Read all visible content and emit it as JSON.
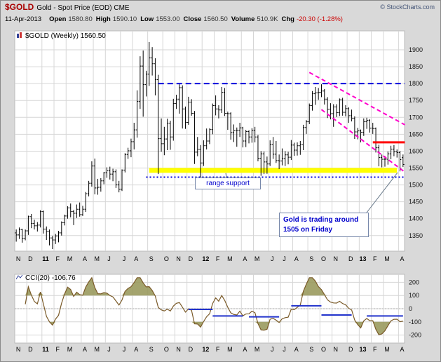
{
  "header": {
    "symbol": "$GOLD",
    "title": "Gold - Spot Price (EOD) CME",
    "copyright": "© StockCharts.com",
    "date": "11-Apr-2013",
    "quote": [
      {
        "label": "Open",
        "value": "1580.80"
      },
      {
        "label": "High",
        "value": "1590.10"
      },
      {
        "label": "Low",
        "value": "1553.00"
      },
      {
        "label": "Close",
        "value": "1560.50"
      },
      {
        "label": "Volume",
        "value": "510.9K"
      },
      {
        "label": "Chg",
        "value": "-20.30 (-1.28%)"
      }
    ]
  },
  "chart_data": {
    "type": "ohlc-bar",
    "symbol": "$GOLD",
    "timeframe": "Weekly",
    "legend": "$GOLD (Weekly) 1560.50",
    "last_close": 1560.5,
    "y_ticks": [
      1900,
      1850,
      1800,
      1750,
      1700,
      1650,
      1600,
      1550,
      1500,
      1450,
      1400,
      1350
    ],
    "y_domain": [
      1308,
      1952
    ],
    "x_months": [
      {
        "label": "N",
        "weeks": 4
      },
      {
        "label": "D",
        "weeks": 5
      },
      {
        "label": "11",
        "weeks": 4,
        "bold": true
      },
      {
        "label": "F",
        "weeks": 4
      },
      {
        "label": "M",
        "weeks": 5
      },
      {
        "label": "A",
        "weeks": 4
      },
      {
        "label": "M",
        "weeks": 4
      },
      {
        "label": "J",
        "weeks": 5
      },
      {
        "label": "J",
        "weeks": 4
      },
      {
        "label": "A",
        "weeks": 5
      },
      {
        "label": "S",
        "weeks": 5
      },
      {
        "label": "O",
        "weeks": 4
      },
      {
        "label": "N",
        "weeks": 4
      },
      {
        "label": "D",
        "weeks": 5
      },
      {
        "label": "12",
        "weeks": 4,
        "bold": true
      },
      {
        "label": "F",
        "weeks": 4
      },
      {
        "label": "M",
        "weeks": 5
      },
      {
        "label": "A",
        "weeks": 4
      },
      {
        "label": "M",
        "weeks": 5
      },
      {
        "label": "J",
        "weeks": 4
      },
      {
        "label": "J",
        "weeks": 4
      },
      {
        "label": "A",
        "weeks": 5
      },
      {
        "label": "S",
        "weeks": 4
      },
      {
        "label": "O",
        "weeks": 4
      },
      {
        "label": "N",
        "weeks": 5
      },
      {
        "label": "D",
        "weeks": 4
      },
      {
        "label": "13",
        "weeks": 4,
        "bold": true
      },
      {
        "label": "F",
        "weeks": 4
      },
      {
        "label": "M",
        "weeks": 5
      },
      {
        "label": "A",
        "weeks": 2
      }
    ],
    "bar_color": "#000000",
    "bars": [
      [
        1358,
        1368,
        1332,
        1352
      ],
      [
        1352,
        1374,
        1340,
        1368
      ],
      [
        1368,
        1370,
        1329,
        1342
      ],
      [
        1342,
        1368,
        1336,
        1364
      ],
      [
        1364,
        1409,
        1352,
        1406
      ],
      [
        1406,
        1414,
        1372,
        1386
      ],
      [
        1386,
        1397,
        1368,
        1379
      ],
      [
        1379,
        1390,
        1362,
        1381
      ],
      [
        1381,
        1425,
        1374,
        1421
      ],
      [
        1421,
        1424,
        1356,
        1369
      ],
      [
        1369,
        1377,
        1337,
        1361
      ],
      [
        1361,
        1368,
        1321,
        1343
      ],
      [
        1343,
        1349,
        1310,
        1337
      ],
      [
        1337,
        1355,
        1325,
        1349
      ],
      [
        1349,
        1364,
        1330,
        1358
      ],
      [
        1358,
        1392,
        1350,
        1388
      ],
      [
        1388,
        1412,
        1380,
        1408
      ],
      [
        1408,
        1437,
        1400,
        1432
      ],
      [
        1432,
        1445,
        1404,
        1421
      ],
      [
        1421,
        1426,
        1381,
        1416
      ],
      [
        1416,
        1442,
        1402,
        1428
      ],
      [
        1428,
        1448,
        1406,
        1412
      ],
      [
        1412,
        1438,
        1408,
        1428
      ],
      [
        1428,
        1479,
        1420,
        1474
      ],
      [
        1474,
        1512,
        1466,
        1505
      ],
      [
        1505,
        1570,
        1495,
        1556
      ],
      [
        1556,
        1578,
        1472,
        1491
      ],
      [
        1491,
        1518,
        1471,
        1493
      ],
      [
        1493,
        1520,
        1480,
        1512
      ],
      [
        1512,
        1538,
        1502,
        1536
      ],
      [
        1536,
        1552,
        1521,
        1542
      ],
      [
        1542,
        1554,
        1516,
        1532
      ],
      [
        1532,
        1548,
        1511,
        1539
      ],
      [
        1539,
        1546,
        1491,
        1500
      ],
      [
        1500,
        1512,
        1478,
        1487
      ],
      [
        1487,
        1546,
        1482,
        1544
      ],
      [
        1544,
        1594,
        1537,
        1590
      ],
      [
        1590,
        1610,
        1577,
        1601
      ],
      [
        1601,
        1637,
        1582,
        1628
      ],
      [
        1628,
        1684,
        1605,
        1663
      ],
      [
        1663,
        1780,
        1640,
        1747
      ],
      [
        1747,
        1881,
        1725,
        1852
      ],
      [
        1852,
        1898,
        1702,
        1797
      ],
      [
        1797,
        1838,
        1762,
        1828
      ],
      [
        1828,
        1923,
        1793,
        1876
      ],
      [
        1876,
        1908,
        1824,
        1859
      ],
      [
        1859,
        1875,
        1765,
        1812
      ],
      [
        1812,
        1826,
        1532,
        1637
      ],
      [
        1637,
        1697,
        1598,
        1622
      ],
      [
        1622,
        1672,
        1588,
        1636
      ],
      [
        1636,
        1696,
        1603,
        1683
      ],
      [
        1683,
        1690,
        1604,
        1642
      ],
      [
        1642,
        1755,
        1631,
        1741
      ],
      [
        1741,
        1767,
        1725,
        1754
      ],
      [
        1754,
        1798,
        1711,
        1788
      ],
      [
        1788,
        1795,
        1667,
        1725
      ],
      [
        1725,
        1732,
        1666,
        1685
      ],
      [
        1685,
        1761,
        1678,
        1745
      ],
      [
        1745,
        1754,
        1705,
        1712
      ],
      [
        1712,
        1719,
        1562,
        1597
      ],
      [
        1597,
        1642,
        1585,
        1605
      ],
      [
        1605,
        1618,
        1523,
        1565
      ],
      [
        1565,
        1632,
        1556,
        1616
      ],
      [
        1616,
        1667,
        1605,
        1630
      ],
      [
        1630,
        1668,
        1621,
        1664
      ],
      [
        1664,
        1741,
        1650,
        1735
      ],
      [
        1735,
        1765,
        1706,
        1725
      ],
      [
        1725,
        1736,
        1697,
        1722
      ],
      [
        1722,
        1790,
        1713,
        1774
      ],
      [
        1774,
        1787,
        1704,
        1712
      ],
      [
        1712,
        1717,
        1663,
        1711
      ],
      [
        1711,
        1715,
        1634,
        1655
      ],
      [
        1655,
        1679,
        1627,
        1661
      ],
      [
        1661,
        1670,
        1613,
        1662
      ],
      [
        1662,
        1684,
        1642,
        1669
      ],
      [
        1669,
        1672,
        1611,
        1630
      ],
      [
        1630,
        1663,
        1612,
        1658
      ],
      [
        1658,
        1662,
        1623,
        1642
      ],
      [
        1642,
        1668,
        1625,
        1662
      ],
      [
        1662,
        1672,
        1626,
        1642
      ],
      [
        1642,
        1648,
        1570,
        1579
      ],
      [
        1579,
        1600,
        1527,
        1592
      ],
      [
        1592,
        1599,
        1532,
        1568
      ],
      [
        1568,
        1584,
        1533,
        1562
      ],
      [
        1562,
        1632,
        1556,
        1620
      ],
      [
        1620,
        1642,
        1577,
        1591
      ],
      [
        1591,
        1630,
        1565,
        1572
      ],
      [
        1572,
        1590,
        1547,
        1571
      ],
      [
        1571,
        1608,
        1558,
        1578
      ],
      [
        1578,
        1600,
        1556,
        1589
      ],
      [
        1589,
        1598,
        1561,
        1582
      ],
      [
        1582,
        1633,
        1574,
        1618
      ],
      [
        1618,
        1625,
        1586,
        1603
      ],
      [
        1603,
        1626,
        1587,
        1616
      ],
      [
        1616,
        1630,
        1589,
        1619
      ],
      [
        1619,
        1678,
        1603,
        1670
      ],
      [
        1670,
        1692,
        1651,
        1687
      ],
      [
        1687,
        1741,
        1680,
        1735
      ],
      [
        1735,
        1778,
        1720,
        1770
      ],
      [
        1770,
        1790,
        1737,
        1773
      ],
      [
        1773,
        1787,
        1752,
        1774
      ],
      [
        1774,
        1798,
        1760,
        1778
      ],
      [
        1778,
        1784,
        1738,
        1754
      ],
      [
        1754,
        1760,
        1698,
        1724
      ],
      [
        1724,
        1742,
        1694,
        1711
      ],
      [
        1711,
        1739,
        1672,
        1731
      ],
      [
        1731,
        1739,
        1701,
        1714
      ],
      [
        1714,
        1756,
        1704,
        1752
      ],
      [
        1752,
        1758,
        1705,
        1715
      ],
      [
        1715,
        1736,
        1703,
        1726
      ],
      [
        1726,
        1730,
        1684,
        1705
      ],
      [
        1705,
        1723,
        1688,
        1697
      ],
      [
        1697,
        1703,
        1636,
        1657
      ],
      [
        1657,
        1669,
        1635,
        1660
      ],
      [
        1660,
        1664,
        1626,
        1656
      ],
      [
        1656,
        1697,
        1645,
        1687
      ],
      [
        1687,
        1699,
        1666,
        1691
      ],
      [
        1691,
        1695,
        1655,
        1668
      ],
      [
        1668,
        1684,
        1651,
        1667
      ],
      [
        1667,
        1670,
        1596,
        1610
      ],
      [
        1610,
        1619,
        1555,
        1581
      ],
      [
        1581,
        1590,
        1552,
        1576
      ],
      [
        1576,
        1586,
        1554,
        1576
      ],
      [
        1576,
        1599,
        1560,
        1592
      ],
      [
        1592,
        1616,
        1576,
        1606
      ],
      [
        1606,
        1618,
        1585,
        1598
      ],
      [
        1598,
        1605,
        1581,
        1596
      ],
      [
        1596,
        1601,
        1540,
        1575
      ],
      [
        1580.8,
        1590.1,
        1553,
        1560.5
      ]
    ],
    "overlays": {
      "resistance_line": {
        "price": 1800,
        "from_week": 48,
        "to_week": 129.6,
        "color": "#0000dd",
        "style": "dashed"
      },
      "support_dotted": {
        "price": 1523,
        "from_week": 44,
        "to_week": 129.6,
        "color": "#0000dd",
        "style": "dotted"
      },
      "support_band": {
        "price": 1543,
        "from_week": 45,
        "to_week": 127,
        "color": "#ffff00",
        "thickness": 7
      },
      "channel": [
        {
          "from": [
            98,
            1833
          ],
          "to": [
            129.6,
            1678
          ],
          "color": "#ff00cc",
          "style": "dashed"
        },
        {
          "from": [
            102,
            1723
          ],
          "to": [
            129.6,
            1538
          ],
          "color": "#ff00cc",
          "style": "dashed"
        }
      ],
      "red_level": {
        "price": 1626,
        "from_week": 119,
        "to_week": 129.6,
        "color": "#ff0000",
        "thickness": 3
      }
    },
    "annotations": {
      "range_support": "range support",
      "friday_note": "Gold is trading around 1505 on Friday"
    },
    "indicator": {
      "name": "CCI",
      "period": 20,
      "legend": "CCI(20) -106.76",
      "last": -106.76,
      "y_ticks": [
        200,
        100,
        0,
        -100,
        -200
      ],
      "y_domain": [
        -250,
        250
      ],
      "colors": {
        "line": "#7a5a28",
        "fill": "#9a9a5e",
        "annotation": "#2233cc"
      },
      "blue_segments": [
        {
          "from": 58,
          "to": 66,
          "value": -5
        },
        {
          "from": 66,
          "to": 76,
          "value": -55
        },
        {
          "from": 78,
          "to": 88,
          "value": -62
        },
        {
          "from": 92,
          "to": 102,
          "value": 22
        },
        {
          "from": 102,
          "to": 112,
          "value": -48
        },
        {
          "from": 117,
          "to": 129,
          "value": -55
        }
      ]
    }
  }
}
